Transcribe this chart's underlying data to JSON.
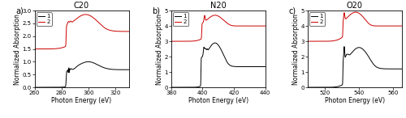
{
  "panel_a": {
    "title": "C20",
    "xlabel": "Photon Energy (eV)",
    "ylabel": "Normalized Absorption",
    "xlim": [
      260,
      330
    ],
    "ylim": [
      0,
      3
    ],
    "yticks": [
      0,
      0.5,
      1,
      1.5,
      2,
      2.5,
      3
    ],
    "label": "a)"
  },
  "panel_b": {
    "title": "N20",
    "xlabel": "Photon Energy (eV)",
    "ylabel": "Normalized Absorption",
    "xlim": [
      380,
      440
    ],
    "ylim": [
      0,
      5
    ],
    "yticks": [
      0,
      1,
      2,
      3,
      4,
      5
    ],
    "label": "b)"
  },
  "panel_c": {
    "title": "O20",
    "xlabel": "Photon Energy (eV)",
    "ylabel": "Normalized Absorption",
    "xlim": [
      510,
      565
    ],
    "ylim": [
      0,
      5
    ],
    "yticks": [
      0,
      1,
      2,
      3,
      4,
      5
    ],
    "label": "c)"
  },
  "color_1": "#000000",
  "color_2": "#cc0000",
  "legend_labels": [
    "1",
    "2"
  ],
  "line_width": 0.7
}
